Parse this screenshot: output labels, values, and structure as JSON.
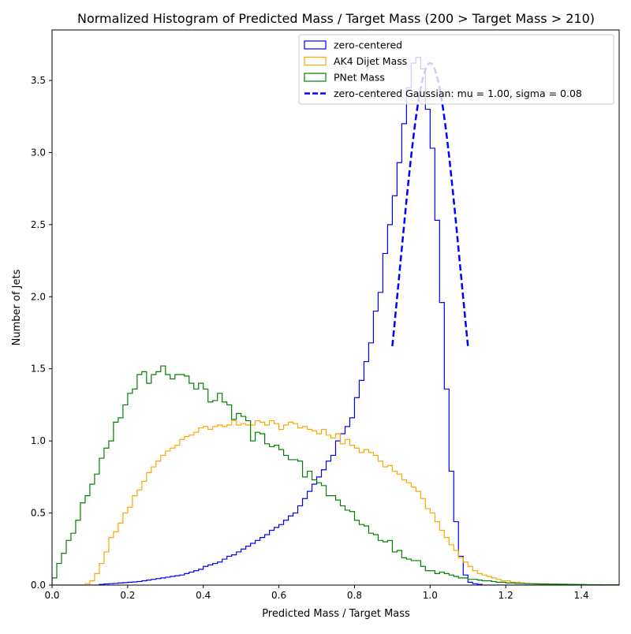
{
  "chart_data": {
    "type": "histogram",
    "title": "Normalized Histogram of Predicted Mass / Target Mass (200 > Target Mass > 210)",
    "xlabel": "Predicted Mass / Target Mass",
    "ylabel": "Number of Jets",
    "xlim": [
      0,
      1.5
    ],
    "ylim": [
      0,
      3.85
    ],
    "xticks": [
      0.0,
      0.2,
      0.4,
      0.6,
      0.8,
      1.0,
      1.2,
      1.4
    ],
    "xtick_labels": [
      "0.0",
      "0.2",
      "0.4",
      "0.6",
      "0.8",
      "1.0",
      "1.2",
      "1.4"
    ],
    "yticks": [
      0.0,
      0.5,
      1.0,
      1.5,
      2.0,
      2.5,
      3.0,
      3.5
    ],
    "ytick_labels": [
      "0.0",
      "0.5",
      "1.0",
      "1.5",
      "2.0",
      "2.5",
      "3.0",
      "3.5"
    ],
    "grid": false,
    "legend_position": "top-right",
    "bin_edges_start": 0.0,
    "bin_width": 0.0125,
    "series": [
      {
        "name": "zero-centered",
        "color": "#0000ff",
        "style": "step",
        "values": [
          0,
          0,
          0,
          0,
          0,
          0,
          0,
          0,
          0,
          0,
          0.005,
          0.008,
          0.01,
          0.012,
          0.015,
          0.017,
          0.02,
          0.022,
          0.025,
          0.03,
          0.035,
          0.04,
          0.045,
          0.05,
          0.055,
          0.06,
          0.065,
          0.07,
          0.08,
          0.09,
          0.1,
          0.11,
          0.13,
          0.14,
          0.15,
          0.16,
          0.18,
          0.2,
          0.21,
          0.23,
          0.25,
          0.27,
          0.29,
          0.31,
          0.33,
          0.35,
          0.38,
          0.4,
          0.42,
          0.45,
          0.48,
          0.5,
          0.55,
          0.6,
          0.65,
          0.7,
          0.75,
          0.8,
          0.86,
          0.9,
          1.0,
          1.05,
          1.1,
          1.16,
          1.3,
          1.42,
          1.55,
          1.68,
          1.9,
          2.03,
          2.3,
          2.5,
          2.7,
          2.93,
          3.2,
          3.45,
          3.62,
          3.66,
          3.58,
          3.3,
          3.03,
          2.53,
          1.96,
          1.36,
          0.79,
          0.44,
          0.2,
          0.07,
          0.02,
          0.01,
          0.005,
          0,
          0,
          0,
          0,
          0,
          0,
          0,
          0,
          0,
          0,
          0,
          0,
          0,
          0,
          0,
          0,
          0,
          0,
          0,
          0,
          0,
          0,
          0,
          0,
          0,
          0,
          0,
          0,
          0
        ]
      },
      {
        "name": "AK4 Dijet Mass",
        "color": "#ffa500",
        "style": "step",
        "values": [
          0,
          0,
          0,
          0,
          0,
          0,
          0,
          0.01,
          0.03,
          0.08,
          0.15,
          0.23,
          0.33,
          0.37,
          0.43,
          0.5,
          0.54,
          0.62,
          0.66,
          0.72,
          0.78,
          0.82,
          0.86,
          0.9,
          0.93,
          0.95,
          0.97,
          1.01,
          1.03,
          1.04,
          1.06,
          1.09,
          1.1,
          1.08,
          1.1,
          1.11,
          1.1,
          1.11,
          1.14,
          1.11,
          1.12,
          1.11,
          1.11,
          1.14,
          1.13,
          1.11,
          1.14,
          1.12,
          1.08,
          1.11,
          1.13,
          1.12,
          1.09,
          1.1,
          1.08,
          1.07,
          1.05,
          1.08,
          1.04,
          1.02,
          1.05,
          0.98,
          1.01,
          0.97,
          0.95,
          0.92,
          0.94,
          0.92,
          0.9,
          0.86,
          0.82,
          0.83,
          0.79,
          0.77,
          0.73,
          0.71,
          0.68,
          0.65,
          0.6,
          0.53,
          0.5,
          0.44,
          0.38,
          0.33,
          0.28,
          0.24,
          0.19,
          0.16,
          0.13,
          0.1,
          0.08,
          0.07,
          0.06,
          0.05,
          0.04,
          0.03,
          0.03,
          0.02,
          0.02,
          0.015,
          0.012,
          0.01,
          0.008,
          0.006,
          0.005,
          0.004,
          0.003,
          0.002,
          0.002,
          0.001,
          0.001,
          0.001,
          0.001,
          0.001,
          0.001,
          0.001,
          0.001,
          0.001,
          0.001,
          0.001
        ]
      },
      {
        "name": "PNet Mass",
        "color": "#008000",
        "style": "step",
        "values": [
          0.05,
          0.15,
          0.22,
          0.31,
          0.36,
          0.45,
          0.57,
          0.62,
          0.7,
          0.77,
          0.88,
          0.95,
          1.0,
          1.13,
          1.16,
          1.25,
          1.33,
          1.36,
          1.46,
          1.48,
          1.4,
          1.46,
          1.48,
          1.52,
          1.46,
          1.43,
          1.46,
          1.46,
          1.45,
          1.4,
          1.36,
          1.4,
          1.36,
          1.27,
          1.28,
          1.33,
          1.27,
          1.25,
          1.15,
          1.19,
          1.17,
          1.14,
          1.0,
          1.06,
          1.05,
          0.98,
          0.96,
          0.97,
          0.94,
          0.9,
          0.87,
          0.87,
          0.86,
          0.75,
          0.79,
          0.73,
          0.71,
          0.69,
          0.62,
          0.62,
          0.59,
          0.55,
          0.52,
          0.51,
          0.45,
          0.42,
          0.41,
          0.36,
          0.35,
          0.31,
          0.3,
          0.31,
          0.23,
          0.24,
          0.19,
          0.18,
          0.17,
          0.17,
          0.13,
          0.1,
          0.1,
          0.08,
          0.09,
          0.08,
          0.07,
          0.06,
          0.05,
          0.05,
          0.04,
          0.04,
          0.035,
          0.03,
          0.03,
          0.025,
          0.02,
          0.02,
          0.015,
          0.015,
          0.012,
          0.012,
          0.01,
          0.01,
          0.009,
          0.008,
          0.008,
          0.007,
          0.007,
          0.006,
          0.006,
          0.005,
          0.005,
          0.004,
          0.004,
          0.003,
          0.003,
          0.003,
          0.002,
          0.002,
          0.002,
          0.002
        ]
      }
    ],
    "fit_curve": {
      "name": "zero-centered Gaussian: mu = 1.00, sigma = 0.08",
      "color": "#0000ff",
      "style": "dashed",
      "mu": 1.0,
      "sigma": 0.08,
      "peak": 3.62,
      "x_range": [
        0.9,
        1.1
      ]
    }
  }
}
